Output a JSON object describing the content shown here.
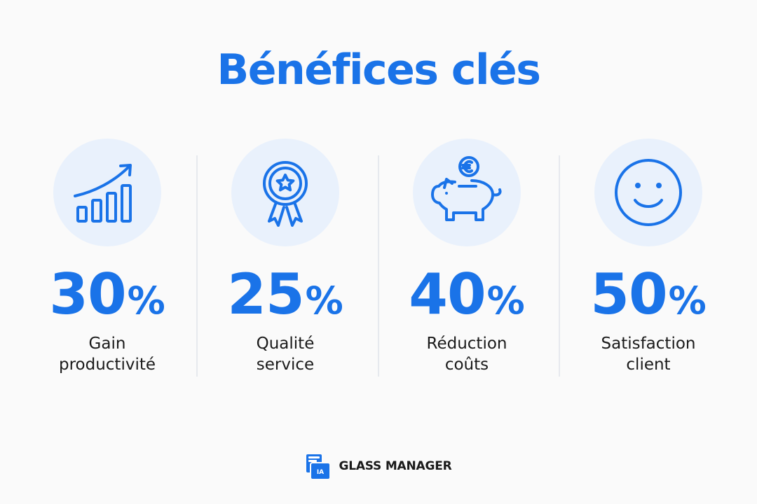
{
  "title": "Bénéfices clés",
  "colors": {
    "accent": "#1a73e8",
    "icon_bg": "#e9f1fc",
    "text": "#1a1a1a"
  },
  "benefits": [
    {
      "icon": "growth-chart-icon",
      "number": "30",
      "unit": "%",
      "label_line1": "Gain",
      "label_line2": "productivité"
    },
    {
      "icon": "award-ribbon-icon",
      "number": "25",
      "unit": "%",
      "label_line1": "Qualité",
      "label_line2": "service"
    },
    {
      "icon": "piggy-bank-euro-icon",
      "number": "40",
      "unit": "%",
      "label_line1": "Réduction",
      "label_line2": "coûts"
    },
    {
      "icon": "smiley-face-icon",
      "number": "50",
      "unit": "%",
      "label_line1": "Satisfaction",
      "label_line2": "client"
    }
  ],
  "footer": {
    "logo_text": "IA",
    "brand": "GLASS MANAGER"
  }
}
